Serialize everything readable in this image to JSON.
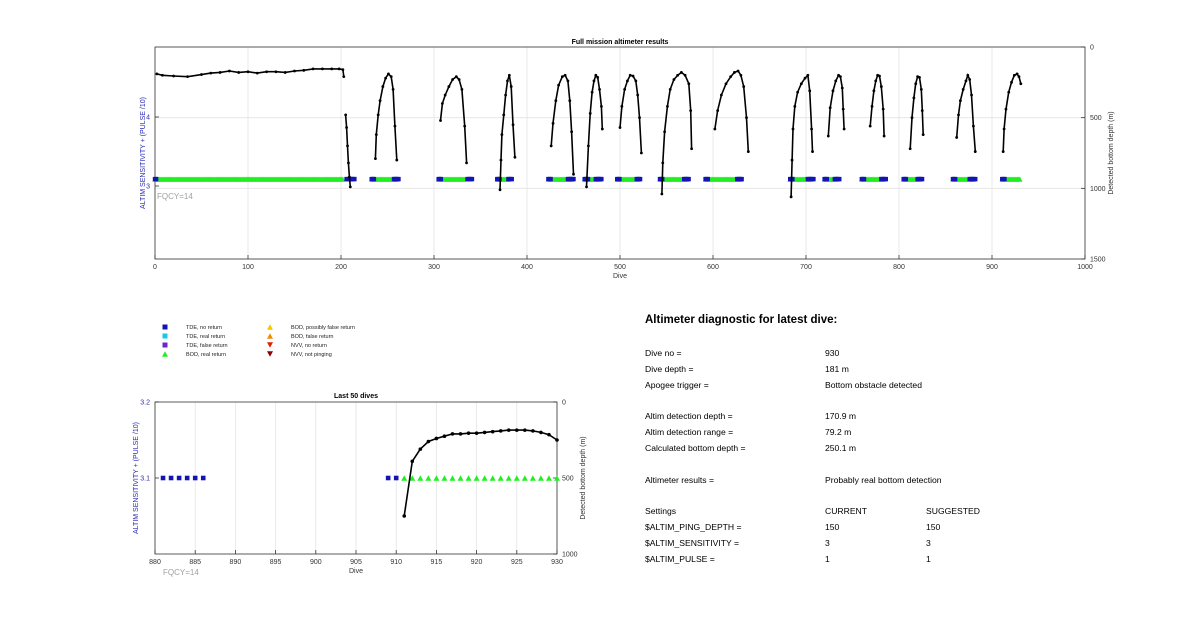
{
  "chart_data": [
    {
      "type": "scatter",
      "title": "Full mission altimeter results",
      "xlabel": "Dive",
      "ylabel_left": "ALTIM SENSITIVITY + (PULSE /10)",
      "ylabel_right": "Detected bottom depth (m)",
      "xlim": [
        0,
        1000
      ],
      "xticks": [
        0,
        100,
        200,
        300,
        400,
        500,
        600,
        700,
        800,
        900,
        1000
      ],
      "left_ticks": [
        "3",
        "4"
      ],
      "right_ylim": [
        0,
        1500
      ],
      "right_ticks": [
        0,
        500,
        1000,
        1500
      ],
      "grid": true,
      "annotation": "FQCY=14",
      "bod_real_segments": [
        [
          0,
          202
        ],
        [
          233,
          260
        ],
        [
          305,
          333
        ],
        [
          368,
          380
        ],
        [
          423,
          448
        ],
        [
          462,
          478
        ],
        [
          497,
          520
        ],
        [
          543,
          572
        ],
        [
          592,
          630
        ],
        [
          683,
          705
        ],
        [
          720,
          733
        ],
        [
          760,
          783
        ],
        [
          805,
          822
        ],
        [
          858,
          880
        ],
        [
          911,
          930
        ]
      ],
      "tde_no_return_segments": [
        [
          0,
          2
        ],
        [
          206,
          215
        ],
        [
          233,
          236
        ],
        [
          257,
          262
        ],
        [
          305,
          308
        ],
        [
          336,
          341
        ],
        [
          368,
          371
        ],
        [
          380,
          384
        ],
        [
          423,
          426
        ],
        [
          444,
          451
        ],
        [
          462,
          466
        ],
        [
          474,
          481
        ],
        [
          497,
          500
        ],
        [
          518,
          522
        ],
        [
          543,
          546
        ],
        [
          569,
          574
        ],
        [
          592,
          595
        ],
        [
          626,
          632
        ],
        [
          683,
          686
        ],
        [
          702,
          709
        ],
        [
          720,
          723
        ],
        [
          731,
          736
        ],
        [
          760,
          763
        ],
        [
          781,
          786
        ],
        [
          805,
          808
        ],
        [
          820,
          825
        ],
        [
          858,
          861
        ],
        [
          876,
          883
        ],
        [
          911,
          914
        ]
      ],
      "bottom_depth_segments": [
        [
          [
            2,
            190
          ],
          [
            8,
            200
          ],
          [
            20,
            205
          ],
          [
            35,
            210
          ],
          [
            50,
            195
          ],
          [
            60,
            185
          ],
          [
            70,
            180
          ],
          [
            80,
            170
          ],
          [
            90,
            180
          ],
          [
            100,
            175
          ],
          [
            110,
            185
          ],
          [
            120,
            175
          ],
          [
            130,
            175
          ],
          [
            140,
            180
          ],
          [
            150,
            170
          ],
          [
            160,
            165
          ],
          [
            170,
            155
          ],
          [
            180,
            155
          ],
          [
            190,
            155
          ],
          [
            198,
            155
          ],
          [
            202,
            160
          ],
          [
            203,
            210
          ]
        ],
        [
          [
            205,
            480
          ],
          [
            206,
            570
          ],
          [
            207,
            700
          ],
          [
            208,
            820
          ],
          [
            209,
            920
          ],
          [
            210,
            990
          ]
        ],
        [
          [
            237,
            790
          ],
          [
            238,
            620
          ],
          [
            240,
            480
          ],
          [
            242,
            380
          ],
          [
            245,
            280
          ],
          [
            248,
            220
          ],
          [
            251,
            190
          ],
          [
            254,
            210
          ],
          [
            256,
            300
          ],
          [
            258,
            560
          ],
          [
            260,
            800
          ]
        ],
        [
          [
            307,
            520
          ],
          [
            309,
            400
          ],
          [
            312,
            340
          ],
          [
            316,
            280
          ],
          [
            320,
            230
          ],
          [
            324,
            210
          ],
          [
            327,
            230
          ],
          [
            330,
            300
          ],
          [
            333,
            560
          ],
          [
            335,
            820
          ]
        ],
        [
          [
            371,
            1010
          ],
          [
            372,
            800
          ],
          [
            373,
            620
          ],
          [
            375,
            480
          ],
          [
            377,
            340
          ],
          [
            379,
            240
          ],
          [
            381,
            200
          ],
          [
            383,
            280
          ],
          [
            385,
            550
          ],
          [
            387,
            780
          ]
        ],
        [
          [
            426,
            700
          ],
          [
            428,
            540
          ],
          [
            431,
            380
          ],
          [
            434,
            270
          ],
          [
            438,
            210
          ],
          [
            441,
            200
          ],
          [
            444,
            240
          ],
          [
            446,
            380
          ],
          [
            448,
            600
          ],
          [
            450,
            900
          ]
        ],
        [
          [
            464,
            990
          ],
          [
            466,
            700
          ],
          [
            468,
            470
          ],
          [
            470,
            320
          ],
          [
            472,
            240
          ],
          [
            474,
            200
          ],
          [
            476,
            215
          ],
          [
            478,
            300
          ],
          [
            480,
            420
          ],
          [
            481,
            580
          ]
        ],
        [
          [
            500,
            570
          ],
          [
            502,
            420
          ],
          [
            505,
            300
          ],
          [
            508,
            240
          ],
          [
            511,
            200
          ],
          [
            514,
            205
          ],
          [
            517,
            240
          ],
          [
            519,
            340
          ],
          [
            521,
            500
          ],
          [
            523,
            750
          ]
        ],
        [
          [
            545,
            1040
          ],
          [
            546,
            820
          ],
          [
            548,
            600
          ],
          [
            551,
            420
          ],
          [
            554,
            300
          ],
          [
            558,
            230
          ],
          [
            562,
            200
          ],
          [
            566,
            180
          ],
          [
            570,
            200
          ],
          [
            574,
            260
          ],
          [
            576,
            450
          ],
          [
            577,
            720
          ]
        ],
        [
          [
            602,
            580
          ],
          [
            605,
            450
          ],
          [
            609,
            340
          ],
          [
            614,
            260
          ],
          [
            619,
            210
          ],
          [
            623,
            180
          ],
          [
            627,
            170
          ],
          [
            630,
            200
          ],
          [
            633,
            280
          ],
          [
            636,
            500
          ],
          [
            638,
            740
          ]
        ],
        [
          [
            684,
            1060
          ],
          [
            685,
            800
          ],
          [
            686,
            580
          ],
          [
            688,
            420
          ],
          [
            691,
            320
          ],
          [
            695,
            260
          ],
          [
            699,
            220
          ],
          [
            702,
            200
          ],
          [
            704,
            310
          ],
          [
            706,
            580
          ],
          [
            707,
            740
          ]
        ],
        [
          [
            724,
            630
          ],
          [
            726,
            430
          ],
          [
            729,
            310
          ],
          [
            732,
            240
          ],
          [
            735,
            200
          ],
          [
            737,
            210
          ],
          [
            739,
            290
          ],
          [
            740,
            440
          ],
          [
            741,
            580
          ]
        ],
        [
          [
            769,
            560
          ],
          [
            771,
            420
          ],
          [
            773,
            310
          ],
          [
            775,
            240
          ],
          [
            777,
            200
          ],
          [
            779,
            205
          ],
          [
            781,
            280
          ],
          [
            783,
            440
          ],
          [
            784,
            630
          ]
        ],
        [
          [
            812,
            720
          ],
          [
            814,
            500
          ],
          [
            816,
            360
          ],
          [
            818,
            260
          ],
          [
            820,
            210
          ],
          [
            822,
            215
          ],
          [
            824,
            300
          ],
          [
            825,
            450
          ],
          [
            826,
            620
          ]
        ],
        [
          [
            862,
            640
          ],
          [
            864,
            480
          ],
          [
            866,
            380
          ],
          [
            869,
            300
          ],
          [
            872,
            240
          ],
          [
            874,
            200
          ],
          [
            876,
            230
          ],
          [
            878,
            340
          ],
          [
            880,
            560
          ],
          [
            882,
            740
          ]
        ],
        [
          [
            912,
            740
          ],
          [
            913,
            580
          ],
          [
            915,
            440
          ],
          [
            918,
            320
          ],
          [
            921,
            250
          ],
          [
            924,
            200
          ],
          [
            927,
            190
          ],
          [
            929,
            210
          ],
          [
            931,
            260
          ]
        ]
      ]
    },
    {
      "type": "scatter",
      "title": "Last 50 dives",
      "xlabel": "Dive",
      "ylabel_left": "ALTIM SENSITIVITY + (PULSE /10)",
      "ylabel_right": "Detected bottom depth (m)",
      "xlim": [
        880,
        930
      ],
      "xticks": [
        880,
        885,
        890,
        895,
        900,
        905,
        910,
        915,
        920,
        925,
        930
      ],
      "left_ylim": [
        3.0,
        3.2
      ],
      "left_ticks": [
        "3.1",
        "3.2"
      ],
      "right_ylim": [
        0,
        1000
      ],
      "right_ticks": [
        0,
        500,
        1000
      ],
      "grid": true,
      "annotation": "FQCY=14",
      "tde_no_return_x": [
        881,
        882,
        883,
        884,
        885,
        886,
        909,
        910
      ],
      "sensitivity_value": 3.1,
      "bod_real_x": [
        911,
        912,
        913,
        914,
        915,
        916,
        917,
        918,
        919,
        920,
        921,
        922,
        923,
        924,
        925,
        926,
        927,
        928,
        929,
        930
      ],
      "bottom_depth": [
        [
          911,
          750
        ],
        [
          912,
          390
        ],
        [
          913,
          310
        ],
        [
          914,
          260
        ],
        [
          915,
          240
        ],
        [
          916,
          225
        ],
        [
          917,
          210
        ],
        [
          918,
          210
        ],
        [
          919,
          205
        ],
        [
          920,
          205
        ],
        [
          921,
          200
        ],
        [
          922,
          195
        ],
        [
          923,
          190
        ],
        [
          924,
          185
        ],
        [
          925,
          185
        ],
        [
          926,
          185
        ],
        [
          927,
          190
        ],
        [
          928,
          200
        ],
        [
          929,
          215
        ],
        [
          930,
          250
        ]
      ]
    }
  ],
  "legend": [
    {
      "label": "TDE, no return",
      "marker": "square",
      "color": "#1414b4"
    },
    {
      "label": "TDE, real return",
      "marker": "square",
      "color": "#19c8e6"
    },
    {
      "label": "TDE, false return",
      "marker": "square",
      "color": "#6e28c8"
    },
    {
      "label": "BOD, real return",
      "marker": "triangle-up",
      "color": "#22ee22"
    },
    {
      "label": "BOD, possibly false return",
      "marker": "triangle-up",
      "color": "#f0c800"
    },
    {
      "label": "BOD, false return",
      "marker": "triangle-up",
      "color": "#f08c00"
    },
    {
      "label": "NVV, no return",
      "marker": "triangle-down",
      "color": "#e02000"
    },
    {
      "label": "NVV, not pinging",
      "marker": "triangle-down",
      "color": "#8c0000"
    }
  ],
  "diagnostic": {
    "title": "Altimeter diagnostic for latest dive:",
    "rows": [
      {
        "label": "Dive no =",
        "value": "930"
      },
      {
        "label": "Dive depth =",
        "value": "181 m"
      },
      {
        "label": "Apogee trigger =",
        "value": "Bottom obstacle detected"
      },
      {
        "label": "Altim detection depth =",
        "value": "170.9 m"
      },
      {
        "label": "Altim detection range =",
        "value": "79.2 m"
      },
      {
        "label": "Calculated bottom depth =",
        "value": "250.1 m"
      },
      {
        "label": "Altimeter results =",
        "value": "Probably real bottom detection"
      }
    ],
    "settings": {
      "header": {
        "label": "Settings",
        "current": "CURRENT",
        "suggested": "SUGGESTED"
      },
      "rows": [
        {
          "label": "$ALTIM_PING_DEPTH =",
          "current": "150",
          "suggested": "150"
        },
        {
          "label": "$ALTIM_SENSITIVITY =",
          "current": "3",
          "suggested": "3"
        },
        {
          "label": "$ALTIM_PULSE =",
          "current": "1",
          "suggested": "1"
        }
      ]
    }
  },
  "colors": {
    "tde_no_return": "#1414b4",
    "bod_real": "#22ee22",
    "depth_line": "#000000",
    "axis_label_blue": "#2a2ab4",
    "fqcy_grey": "#a0a0a0",
    "grid": "#e4e4e4"
  }
}
